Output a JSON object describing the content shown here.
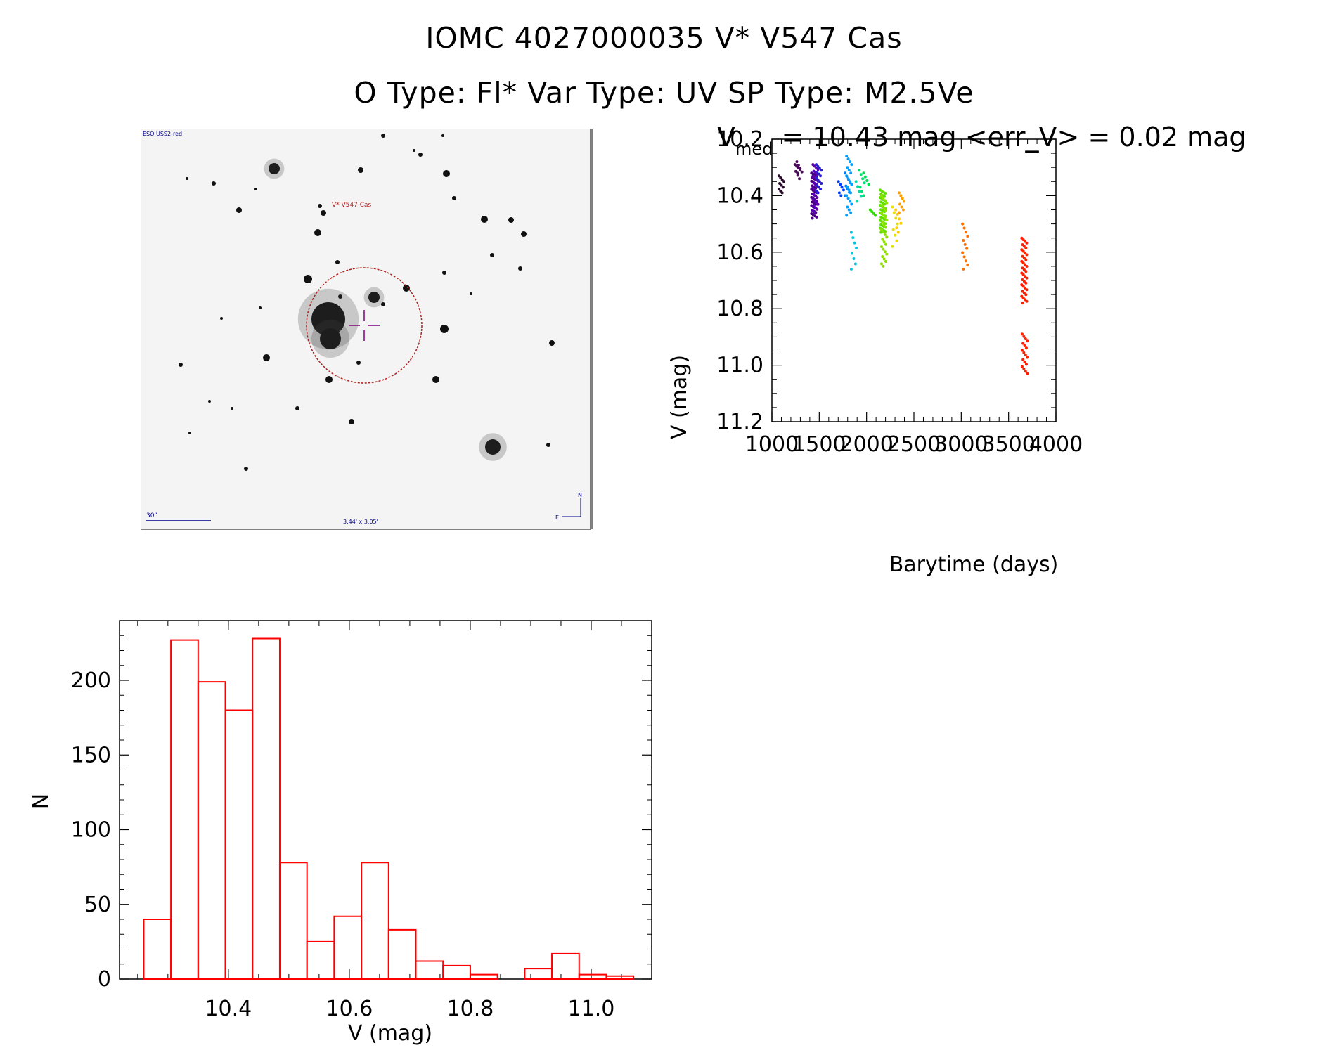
{
  "header": {
    "title_line1": "IOMC 4027000035    V* V547 Cas",
    "title_line2": "O Type: Fl*  Var Type: UV  SP Type: M2.5Ve"
  },
  "finder": {
    "survey_label": "ESO USS2-red",
    "target_label": "V* V547 Cas",
    "scale_label": "30\"",
    "size_label": "3.44' x 3.05'",
    "north_label": "N",
    "east_label": "E",
    "colors": {
      "label": "#00008b",
      "target": "#b22222",
      "crosshair": "#800080"
    }
  },
  "chart_data": [
    {
      "type": "scatter",
      "title_prefix": "V",
      "title_subscript": "med",
      "title_rest": " = 10.43 mag <err_V> = 0.02 mag",
      "xlabel": "Barytime (days)",
      "ylabel": "V (mag)",
      "xlim": [
        1000,
        4000
      ],
      "ylim": [
        11.2,
        10.2
      ],
      "y_inverted": true,
      "xticks": [
        1000,
        1500,
        2000,
        2500,
        3000,
        3500,
        4000
      ],
      "xtick_labels": [
        "1000",
        "1500",
        "2000",
        "2500",
        "3000",
        "3500",
        "4000"
      ],
      "yticks": [
        10.2,
        10.4,
        10.6,
        10.8,
        11.0,
        11.2
      ],
      "ytick_labels": [
        "10.2",
        "10.4",
        "10.6",
        "10.8",
        "11.0",
        "11.2"
      ],
      "groups": [
        {
          "t": 1100,
          "v": [
            10.33,
            10.39
          ],
          "n": 10,
          "color": "#2a0a2a"
        },
        {
          "t": 1270,
          "v": [
            10.29,
            10.32
          ],
          "n": 6,
          "color": "#4b0a5a"
        },
        {
          "t": 1290,
          "v": [
            10.28,
            10.34
          ],
          "n": 6,
          "color": "#4b0a5a"
        },
        {
          "t": 1445,
          "v": [
            10.32,
            10.48
          ],
          "n": 40,
          "color": "#4b0082"
        },
        {
          "t": 1460,
          "v": [
            10.29,
            10.46
          ],
          "n": 30,
          "color": "#5a00b0"
        },
        {
          "t": 1495,
          "v": [
            10.29,
            10.39
          ],
          "n": 16,
          "color": "#2a20d0"
        },
        {
          "t": 1730,
          "v": [
            10.35,
            10.4
          ],
          "n": 6,
          "color": "#0040ff"
        },
        {
          "t": 1800,
          "v": [
            10.32,
            10.4
          ],
          "n": 8,
          "color": "#0080ff"
        },
        {
          "t": 1815,
          "v": [
            10.26,
            10.47
          ],
          "n": 22,
          "color": "#00a0ff"
        },
        {
          "t": 1865,
          "v": [
            10.53,
            10.66
          ],
          "n": 8,
          "color": "#00c8e0"
        },
        {
          "t": 1915,
          "v": [
            10.35,
            10.42
          ],
          "n": 5,
          "color": "#00d8b0"
        },
        {
          "t": 1950,
          "v": [
            10.31,
            10.4
          ],
          "n": 7,
          "color": "#00e070"
        },
        {
          "t": 1995,
          "v": [
            10.32,
            10.36
          ],
          "n": 4,
          "color": "#00e050"
        },
        {
          "t": 2065,
          "v": [
            10.45,
            10.47
          ],
          "n": 4,
          "color": "#30e000"
        },
        {
          "t": 2170,
          "v": [
            10.38,
            10.53
          ],
          "n": 40,
          "color": "#60e000"
        },
        {
          "t": 2185,
          "v": [
            10.4,
            10.65
          ],
          "n": 30,
          "color": "#90e000"
        },
        {
          "t": 2300,
          "v": [
            10.44,
            10.58
          ],
          "n": 8,
          "color": "#e8e000"
        },
        {
          "t": 2335,
          "v": [
            10.45,
            10.53
          ],
          "n": 6,
          "color": "#ffc800"
        },
        {
          "t": 2370,
          "v": [
            10.39,
            10.46
          ],
          "n": 8,
          "color": "#ffa000"
        },
        {
          "t": 3040,
          "v": [
            10.5,
            10.66
          ],
          "n": 12,
          "color": "#ff7000"
        },
        {
          "t": 3665,
          "v": [
            10.55,
            10.78
          ],
          "n": 40,
          "color": "#ff2000"
        },
        {
          "t": 3670,
          "v": [
            10.89,
            11.03
          ],
          "n": 18,
          "color": "#ff2000"
        }
      ]
    },
    {
      "type": "histogram",
      "xlabel": "V (mag)",
      "ylabel": "N",
      "xlim": [
        10.22,
        11.1
      ],
      "ylim": [
        0,
        240
      ],
      "xticks": [
        10.4,
        10.6,
        10.8,
        11.0
      ],
      "xtick_labels": [
        "10.4",
        "10.6",
        "10.8",
        "11.0"
      ],
      "yticks": [
        0,
        50,
        100,
        150,
        200
      ],
      "ytick_labels": [
        "0",
        "50",
        "100",
        "150",
        "200"
      ],
      "bin_width": 0.045,
      "bin_start": 10.26,
      "counts": [
        40,
        227,
        199,
        180,
        228,
        78,
        25,
        42,
        78,
        33,
        12,
        9,
        3,
        0,
        7,
        17,
        3,
        2
      ],
      "color": "#ff0000"
    }
  ]
}
